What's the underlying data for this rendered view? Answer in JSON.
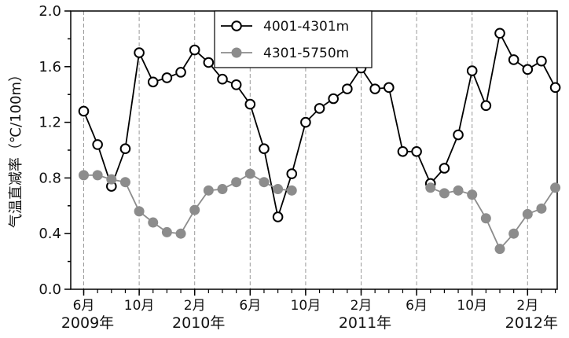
{
  "chart_data": {
    "type": "line",
    "ylabel": "气温直减率（℃/100m）",
    "ylim": [
      0.0,
      2.0
    ],
    "yticks": [
      "0.0",
      "0.4",
      "0.8",
      "1.2",
      "1.6",
      "2.0"
    ],
    "ytick_values": [
      0.0,
      0.4,
      0.8,
      1.2,
      1.6,
      2.0
    ],
    "grid": "vertical dashed lines at month ticks",
    "legend_position": "top",
    "x_start_month": "2009-06",
    "x_end_month": "2012-03",
    "xticks": [
      {
        "label": "6月",
        "month": "2009-06"
      },
      {
        "label": "10月",
        "month": "2009-10"
      },
      {
        "label": "2月",
        "month": "2010-02"
      },
      {
        "label": "6月",
        "month": "2010-06"
      },
      {
        "label": "10月",
        "month": "2010-10"
      },
      {
        "label": "2月",
        "month": "2011-02"
      },
      {
        "label": "6月",
        "month": "2011-06"
      },
      {
        "label": "10月",
        "month": "2011-10"
      },
      {
        "label": "2月",
        "month": "2012-02"
      }
    ],
    "year_labels": [
      {
        "label": "2009年",
        "month": "2009-06"
      },
      {
        "label": "2010年",
        "month": "2010-02"
      },
      {
        "label": "2011年",
        "month": "2011-02"
      },
      {
        "label": "2012年",
        "month": "2012-02"
      }
    ],
    "series": [
      {
        "name": "4001-4301m",
        "color": "#000000",
        "marker": "open-circle",
        "points": [
          {
            "x": "2009-06",
            "y": 1.28
          },
          {
            "x": "2009-07",
            "y": 1.04
          },
          {
            "x": "2009-08",
            "y": 0.74
          },
          {
            "x": "2009-09",
            "y": 1.01
          },
          {
            "x": "2009-10",
            "y": 1.7
          },
          {
            "x": "2009-11",
            "y": 1.49
          },
          {
            "x": "2009-12",
            "y": 1.52
          },
          {
            "x": "2010-01",
            "y": 1.56
          },
          {
            "x": "2010-02",
            "y": 1.72
          },
          {
            "x": "2010-03",
            "y": 1.63
          },
          {
            "x": "2010-04",
            "y": 1.51
          },
          {
            "x": "2010-05",
            "y": 1.47
          },
          {
            "x": "2010-06",
            "y": 1.33
          },
          {
            "x": "2010-07",
            "y": 1.01
          },
          {
            "x": "2010-08",
            "y": 0.52
          },
          {
            "x": "2010-09",
            "y": 0.83
          },
          {
            "x": "2010-10",
            "y": 1.2
          },
          {
            "x": "2010-11",
            "y": 1.3
          },
          {
            "x": "2010-12",
            "y": 1.37
          },
          {
            "x": "2011-01",
            "y": 1.44
          },
          {
            "x": "2011-02",
            "y": 1.59
          },
          {
            "x": "2011-03",
            "y": 1.44
          },
          {
            "x": "2011-04",
            "y": 1.45
          },
          {
            "x": "2011-05",
            "y": 0.99
          },
          {
            "x": "2011-06",
            "y": 0.99
          },
          {
            "x": "2011-07",
            "y": 0.76
          },
          {
            "x": "2011-08",
            "y": 0.87
          },
          {
            "x": "2011-09",
            "y": 1.11
          },
          {
            "x": "2011-10",
            "y": 1.57
          },
          {
            "x": "2011-11",
            "y": 1.32
          },
          {
            "x": "2011-12",
            "y": 1.84
          },
          {
            "x": "2012-01",
            "y": 1.65
          },
          {
            "x": "2012-02",
            "y": 1.58
          },
          {
            "x": "2012-03",
            "y": 1.64
          },
          {
            "x": "2012-04",
            "y": 1.45
          }
        ]
      },
      {
        "name": "4301-5750m",
        "color": "#8c8c8c",
        "marker": "filled-circle",
        "points": [
          {
            "x": "2009-06",
            "y": 0.82
          },
          {
            "x": "2009-07",
            "y": 0.82
          },
          {
            "x": "2009-08",
            "y": 0.79
          },
          {
            "x": "2009-09",
            "y": 0.77
          },
          {
            "x": "2009-10",
            "y": 0.56
          },
          {
            "x": "2009-11",
            "y": 0.48
          },
          {
            "x": "2009-12",
            "y": 0.41
          },
          {
            "x": "2010-01",
            "y": 0.4
          },
          {
            "x": "2010-02",
            "y": 0.57
          },
          {
            "x": "2010-03",
            "y": 0.71
          },
          {
            "x": "2010-04",
            "y": 0.72
          },
          {
            "x": "2010-05",
            "y": 0.77
          },
          {
            "x": "2010-06",
            "y": 0.83
          },
          {
            "x": "2010-07",
            "y": 0.77
          },
          {
            "x": "2010-08",
            "y": 0.72
          },
          {
            "x": "2010-09",
            "y": 0.71
          },
          {
            "x": "2011-07",
            "y": 0.73
          },
          {
            "x": "2011-08",
            "y": 0.69
          },
          {
            "x": "2011-09",
            "y": 0.71
          },
          {
            "x": "2011-10",
            "y": 0.68
          },
          {
            "x": "2011-11",
            "y": 0.51
          },
          {
            "x": "2011-12",
            "y": 0.29
          },
          {
            "x": "2012-01",
            "y": 0.4
          },
          {
            "x": "2012-02",
            "y": 0.54
          },
          {
            "x": "2012-03",
            "y": 0.58
          },
          {
            "x": "2012-04",
            "y": 0.73
          }
        ]
      }
    ]
  }
}
